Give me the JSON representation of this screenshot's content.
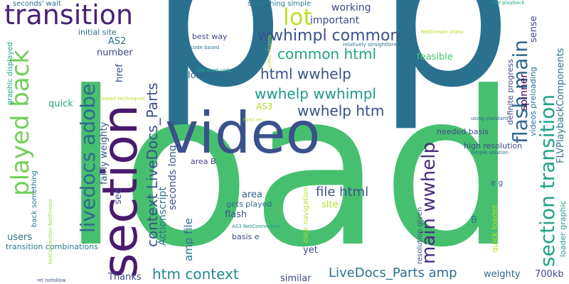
{
  "words": [
    {
      "text": "p",
      "color": "#2a7190"
    },
    {
      "text": "p",
      "color": "#2a7190"
    },
    {
      "text": "load",
      "color": "#46c06f"
    },
    {
      "text": "video",
      "color": "#3b518b"
    },
    {
      "text": "section",
      "color": "#481b6d"
    },
    {
      "text": "transition",
      "color": "#482374"
    },
    {
      "text": "played back",
      "color": "#71cf57"
    },
    {
      "text": "livedocs adobe",
      "color": "#306a8e"
    },
    {
      "text": "lot",
      "color": "#bddf26"
    },
    {
      "text": "wwhimpl common",
      "color": "#3b518b"
    },
    {
      "text": "common html",
      "color": "#20a386"
    },
    {
      "text": "html wwhelp",
      "color": "#3b518b"
    },
    {
      "text": "wwhelp wwhimpl",
      "color": "#1f9a8a"
    },
    {
      "text": "wwhelp htm",
      "color": "#3b518b"
    },
    {
      "text": "flash main",
      "color": "#31688e"
    },
    {
      "text": "section transition",
      "color": "#20a386"
    },
    {
      "text": "main wwhelp",
      "color": "#472d7b"
    },
    {
      "text": "context LiveDocs_Parts",
      "color": "#3b518b"
    },
    {
      "text": "htm context",
      "color": "#23888e"
    },
    {
      "text": "LiveDocs_Parts amp",
      "color": "#2e6e8e"
    },
    {
      "text": "file html",
      "color": "#3b518b"
    },
    {
      "text": "important",
      "color": "#3e4a89"
    },
    {
      "text": "working",
      "color": "#3e4a89"
    },
    {
      "text": "something simple",
      "color": "#2a7a8e"
    },
    {
      "text": "seconds' wait",
      "color": "#31688e"
    },
    {
      "text": "initial site",
      "color": "#2e6e8e"
    },
    {
      "text": "best way",
      "color": "#3e4989"
    },
    {
      "text": "AS2",
      "color": "#2e6e8e"
    },
    {
      "text": "number",
      "color": "#3e4a89"
    },
    {
      "text": "loadbar",
      "color": "#34618d"
    },
    {
      "text": "href",
      "color": "#3b518b"
    },
    {
      "text": "quick",
      "color": "#21a585"
    },
    {
      "text": "AS3",
      "color": "#b5de2b"
    },
    {
      "text": "fairly weighty",
      "color": "#3b528b"
    },
    {
      "text": "Actionscript",
      "color": "#2c728e"
    },
    {
      "text": "seconds long",
      "color": "#3b528b"
    },
    {
      "text": "amp file",
      "color": "#2c728e"
    },
    {
      "text": "area B",
      "color": "#433e85"
    },
    {
      "text": "area",
      "color": "#34618d"
    },
    {
      "text": "flash",
      "color": "#3b528b"
    },
    {
      "text": "gets played",
      "color": "#31688e"
    },
    {
      "text": "basis e",
      "color": "#3e4989"
    },
    {
      "text": "see",
      "color": "#3e4989"
    },
    {
      "text": "users",
      "color": "#2c728e"
    },
    {
      "text": "transition combinations",
      "color": "#2a7a8e"
    },
    {
      "text": "Thanks",
      "color": "#3e4989"
    },
    {
      "text": "similar",
      "color": "#3e4989"
    },
    {
      "text": "yet",
      "color": "#3e4989"
    },
    {
      "text": "site",
      "color": "#b5de2b"
    },
    {
      "text": "sense",
      "color": "#3e4989"
    },
    {
      "text": "feasible",
      "color": "#4ac16d"
    },
    {
      "text": "spinner",
      "color": "#440154"
    },
    {
      "text": "needed basis",
      "color": "#3e4989"
    },
    {
      "text": "high resolution",
      "color": "#3e4989"
    },
    {
      "text": "FLVPlaybackComponents",
      "color": "#2c728e"
    },
    {
      "text": "definite progress",
      "color": "#3e4989"
    },
    {
      "text": "videos preloading",
      "color": "#2c728e"
    },
    {
      "text": "weighty",
      "color": "#31688e"
    },
    {
      "text": "700kb",
      "color": "#3e4989"
    },
    {
      "text": "e g",
      "color": "#34618d"
    },
    {
      "text": "B",
      "color": "#2c728e"
    },
    {
      "text": "quick loader",
      "color": "#b5de2b"
    },
    {
      "text": "loader graphic",
      "color": "#1f9e89"
    },
    {
      "text": "resolution given",
      "color": "#3b528b"
    },
    {
      "text": "click navigation",
      "color": "#b5de2b"
    },
    {
      "text": "graphic displayed",
      "color": "#1f9e89"
    },
    {
      "text": "back something",
      "color": "#2c728e"
    },
    {
      "text": "NetConnection NetStream",
      "color": "#a0da39"
    },
    {
      "text": "AS3 NetConnection",
      "color": "#21918c"
    },
    {
      "text": "rel nofollow",
      "color": "#3b528b"
    },
    {
      "text": "FLV playback",
      "color": "#20a386"
    },
    {
      "text": "NetStream Video",
      "color": "#b5de2b"
    },
    {
      "text": "relatively straightforward",
      "color": "#2c728e"
    },
    {
      "text": "video objects",
      "color": "#b5de2b"
    },
    {
      "text": "code based",
      "color": "#2c728e"
    },
    {
      "text": "standard code",
      "color": "#20a386"
    },
    {
      "text": "based techniques",
      "color": "#b5de2b"
    },
    {
      "text": "html rel",
      "color": "#b5de2b"
    },
    {
      "text": "using standard",
      "color": "#31688e"
    },
    {
      "text": "simple solution",
      "color": "#31688e"
    }
  ]
}
